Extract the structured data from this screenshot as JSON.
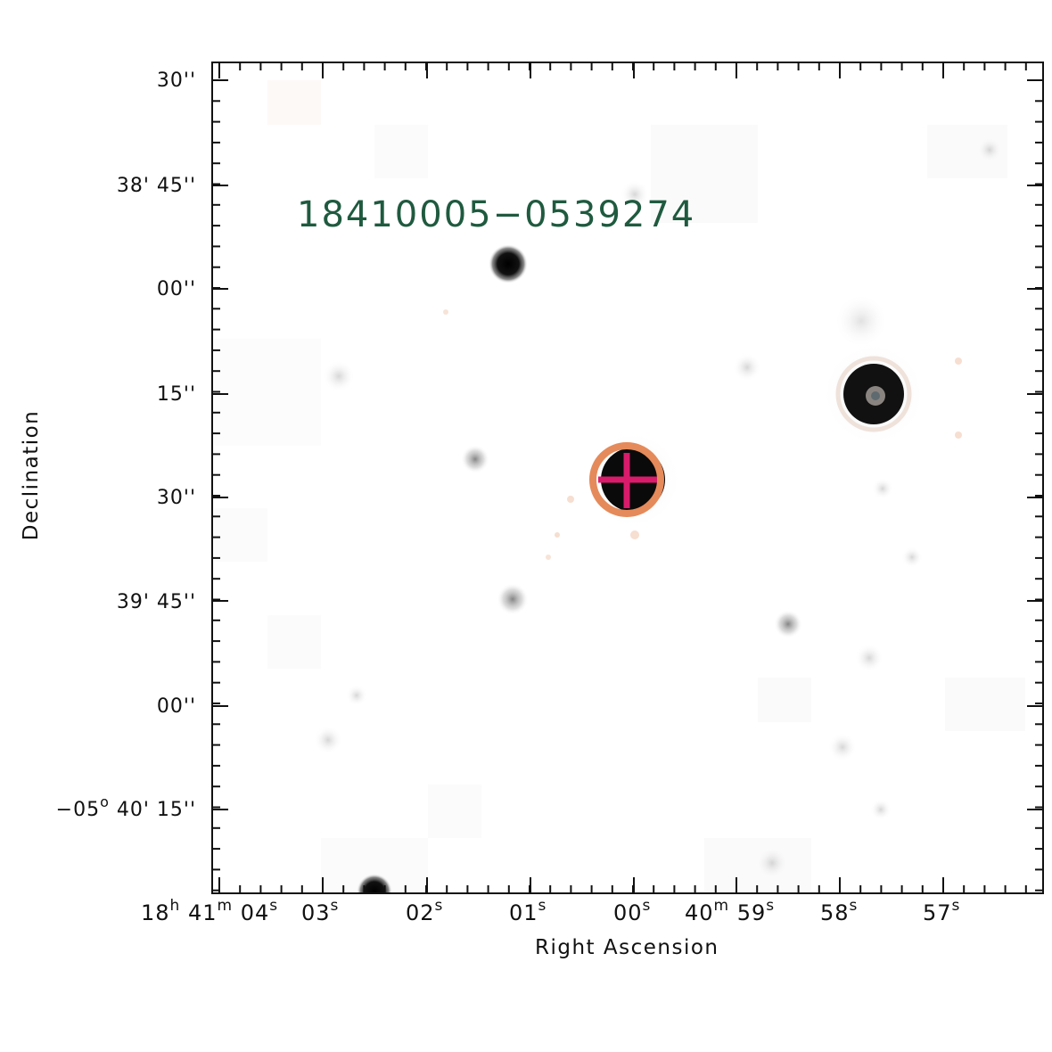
{
  "image": {
    "source_label": "18410005−0539274",
    "x_axis_title": "Right Ascension",
    "y_axis_title": "Declination",
    "ra_ticks": [
      {
        "main": "18",
        "sup1": "h",
        "main2": " 41",
        "sup2": "m",
        "main3": " 04",
        "sup3": "s"
      },
      {
        "main": "03",
        "sup1": "s"
      },
      {
        "main": "02",
        "sup1": "s"
      },
      {
        "main": "01",
        "sup1": "s"
      },
      {
        "main": "00",
        "sup1": "s"
      },
      {
        "main": "40",
        "sup1": "m",
        "main2": " 59",
        "sup2": "s"
      },
      {
        "main": "58",
        "sup1": "s"
      },
      {
        "main": "57",
        "sup1": "s"
      }
    ],
    "dec_ticks": [
      "30''",
      "38' 45''",
      "00''",
      "15''",
      "30''",
      "39' 45''",
      "00''",
      "−05",
      "40' 15''"
    ],
    "dec_tick_degree_sup": "o",
    "colors": {
      "target_circle": "#e58a5a",
      "crosshair": "#d81b6b",
      "label": "#1f5a3f",
      "axes": "#111111"
    },
    "icons": [
      "target-circle-icon",
      "crosshair-icon"
    ]
  }
}
